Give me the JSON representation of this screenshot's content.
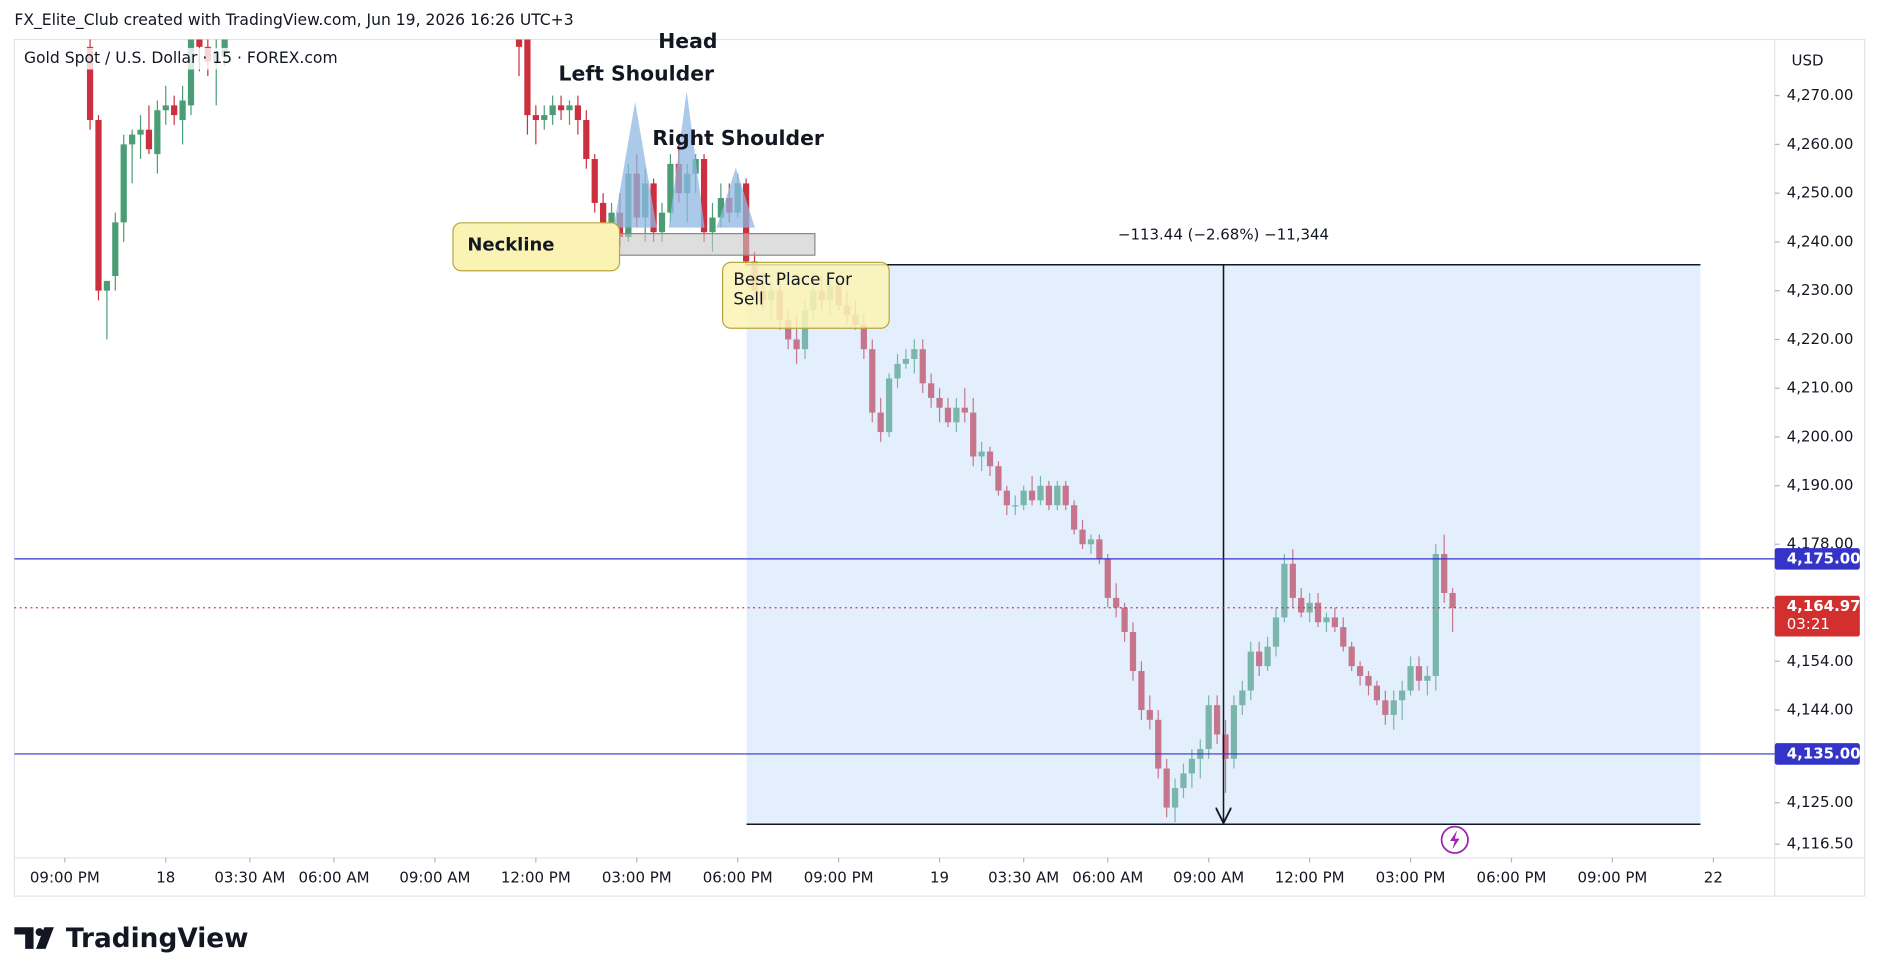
{
  "header": {
    "caption": "FX_Elite_Club created with TradingView.com, Jun 19, 2026 16:26 UTC+3",
    "symbol": "Gold Spot / U.S. Dollar · 15 · FOREX.com",
    "currency": "USD",
    "brand": "TradingView"
  },
  "chart_data": {
    "type": "candlestick",
    "up_color": "#4a9d74",
    "down_color": "#cc2f3d",
    "xlim": [
      -2,
      207.3
    ],
    "ylim": [
      4113.7,
      4281.5
    ],
    "xticks": [
      {
        "value": 4,
        "label": "09:00 PM"
      },
      {
        "value": 16,
        "label": "18"
      },
      {
        "value": 26,
        "label": "03:30 AM"
      },
      {
        "value": 36,
        "label": "06:00 AM"
      },
      {
        "value": 48,
        "label": "09:00 AM"
      },
      {
        "value": 60,
        "label": "12:00 PM"
      },
      {
        "value": 72,
        "label": "03:00 PM"
      },
      {
        "value": 84,
        "label": "06:00 PM"
      },
      {
        "value": 96,
        "label": "09:00 PM"
      },
      {
        "value": 108,
        "label": "19"
      },
      {
        "value": 118,
        "label": "03:30 AM"
      },
      {
        "value": 128,
        "label": "06:00 AM"
      },
      {
        "value": 140,
        "label": "09:00 AM"
      },
      {
        "value": 152,
        "label": "12:00 PM"
      },
      {
        "value": 164,
        "label": "03:00 PM"
      },
      {
        "value": 176,
        "label": "06:00 PM"
      },
      {
        "value": 188,
        "label": "09:00 PM"
      },
      {
        "value": 200,
        "label": "22"
      }
    ],
    "yticks": [
      {
        "value": 4116.5,
        "label": "4,116.50"
      },
      {
        "value": 4125,
        "label": "4,125.00"
      },
      {
        "value": 4144,
        "label": "4,144.00"
      },
      {
        "value": 4154,
        "label": "4,154.00"
      },
      {
        "value": 4178,
        "label": "4,178.00"
      },
      {
        "value": 4190,
        "label": "4,190.00"
      },
      {
        "value": 4200,
        "label": "4,200.00"
      },
      {
        "value": 4210,
        "label": "4,210.00"
      },
      {
        "value": 4220,
        "label": "4,220.00"
      },
      {
        "value": 4230,
        "label": "4,230.00"
      },
      {
        "value": 4240,
        "label": "4,240.00"
      },
      {
        "value": 4250,
        "label": "4,250.00"
      },
      {
        "value": 4260,
        "label": "4,260.00"
      },
      {
        "value": 4270,
        "label": "4,270.00"
      }
    ],
    "x": [
      7,
      8,
      9,
      10,
      11,
      12,
      13,
      14,
      15,
      16,
      17,
      18,
      19,
      20,
      21,
      22,
      23,
      58,
      59,
      60,
      61,
      62,
      63,
      64,
      65,
      66,
      67,
      68,
      69,
      70,
      71,
      72,
      73,
      74,
      75,
      76,
      77,
      78,
      79,
      80,
      81,
      82,
      83,
      84,
      85,
      86,
      87,
      88,
      89,
      90,
      91,
      92,
      93,
      94,
      95,
      96,
      97,
      98,
      99,
      100,
      101,
      102,
      103,
      104,
      105,
      106,
      107,
      108,
      109,
      110,
      111,
      112,
      113,
      114,
      115,
      116,
      117,
      118,
      119,
      120,
      121,
      122,
      123,
      124,
      125,
      126,
      127,
      128,
      129,
      130,
      131,
      132,
      133,
      134,
      135,
      136,
      137,
      138,
      139,
      140,
      141,
      142,
      143,
      144,
      145,
      146,
      147,
      148,
      149,
      150,
      151,
      152,
      153,
      154,
      155,
      156,
      157,
      158,
      159,
      160,
      161,
      162,
      163,
      164,
      165,
      166,
      167,
      168,
      169
    ],
    "open": [
      4280,
      4265,
      4230,
      4233,
      4244,
      4260,
      4262,
      4263,
      4258,
      4267,
      4268,
      4265,
      4268,
      4282,
      4280,
      4277,
      4278,
      4283,
      4282,
      4266,
      4265,
      4266,
      4268,
      4267,
      4268,
      4265,
      4257,
      4248,
      4244,
      4246,
      4241,
      4254,
      4245,
      4252,
      4242,
      4246,
      4256,
      4250,
      4254,
      4257,
      4242,
      4245,
      4249,
      4246,
      4252,
      4236,
      4230,
      4228,
      4230,
      4224,
      4220,
      4218,
      4226,
      4230,
      4228,
      4231,
      4227,
      4225,
      4223,
      4218,
      4205,
      4201,
      4212,
      4215,
      4216,
      4218,
      4211,
      4208,
      4206,
      4203,
      4206,
      4205,
      4196,
      4197,
      4194,
      4189,
      4186,
      4186,
      4189,
      4187,
      4190,
      4186,
      4190,
      4186,
      4181,
      4178,
      4179,
      4175,
      4167,
      4165,
      4160,
      4152,
      4144,
      4142,
      4132,
      4124,
      4128,
      4131,
      4134,
      4136,
      4145,
      4139,
      4134,
      4145,
      4148,
      4156,
      4153,
      4157,
      4163,
      4174,
      4167,
      4164,
      4166,
      4162,
      4163,
      4161,
      4157,
      4153,
      4151,
      4149,
      4146,
      4143,
      4146,
      4148,
      4153,
      4150,
      4151,
      4176,
      4168
    ],
    "high": [
      4285,
      4266,
      4232,
      4246,
      4262,
      4263,
      4266,
      4268,
      4269,
      4272,
      4270,
      4272,
      4285,
      4288,
      4285,
      4282,
      4290,
      4285,
      4283,
      4268,
      4268,
      4270,
      4270,
      4269,
      4270,
      4267,
      4258,
      4250,
      4248,
      4250,
      4256,
      4258,
      4255,
      4253,
      4248,
      4258,
      4262,
      4256,
      4258,
      4258,
      4248,
      4252,
      4252,
      4254,
      4253,
      4238,
      4234,
      4232,
      4231,
      4226,
      4225,
      4228,
      4232,
      4233,
      4232,
      4232,
      4230,
      4228,
      4225,
      4220,
      4208,
      4213,
      4217,
      4218,
      4220,
      4220,
      4213,
      4210,
      4208,
      4208,
      4210,
      4208,
      4199,
      4198,
      4195,
      4190,
      4188,
      4190,
      4192,
      4192,
      4191,
      4191,
      4191,
      4187,
      4183,
      4180,
      4180,
      4176,
      4170,
      4166,
      4162,
      4154,
      4147,
      4144,
      4134,
      4130,
      4133,
      4136,
      4138,
      4147,
      4147,
      4142,
      4147,
      4150,
      4158,
      4158,
      4159,
      4165,
      4176,
      4177,
      4169,
      4168,
      4168,
      4164,
      4165,
      4163,
      4158,
      4154,
      4152,
      4150,
      4148,
      4148,
      4150,
      4155,
      4155,
      4153,
      4178,
      4180,
      4169
    ],
    "low": [
      4263,
      4228,
      4220,
      4230,
      4240,
      4252,
      4257,
      4258,
      4254,
      4264,
      4264,
      4260,
      4266,
      4275,
      4274,
      4268,
      4276,
      4274,
      4262,
      4260,
      4263,
      4264,
      4265,
      4264,
      4262,
      4255,
      4246,
      4238,
      4240,
      4239,
      4240,
      4243,
      4240,
      4240,
      4240,
      4244,
      4248,
      4244,
      4250,
      4240,
      4238,
      4243,
      4244,
      4245,
      4235,
      4228,
      4226,
      4224,
      4222,
      4218,
      4215,
      4216,
      4224,
      4226,
      4225,
      4226,
      4223,
      4222,
      4216,
      4203,
      4199,
      4200,
      4210,
      4214,
      4213,
      4209,
      4206,
      4203,
      4202,
      4201,
      4203,
      4194,
      4193,
      4192,
      4188,
      4184,
      4184,
      4185,
      4186,
      4186,
      4185,
      4185,
      4185,
      4180,
      4177,
      4176,
      4174,
      4165,
      4163,
      4158,
      4150,
      4142,
      4140,
      4130,
      4122,
      4121,
      4126,
      4128,
      4130,
      4134,
      4137,
      4127,
      4132,
      4143,
      4146,
      4151,
      4152,
      4155,
      4162,
      4165,
      4163,
      4162,
      4161,
      4160,
      4160,
      4156,
      4152,
      4149,
      4147,
      4145,
      4141,
      4140,
      4142,
      4147,
      4148,
      4147,
      4148,
      4166,
      4160
    ],
    "close": [
      4265,
      4230,
      4232,
      4244,
      4260,
      4262,
      4263,
      4259,
      4267,
      4268,
      4266,
      4269,
      4282,
      4280,
      4277,
      4279,
      4288,
      4280,
      4266,
      4265,
      4266,
      4268,
      4267,
      4268,
      4265,
      4257,
      4248,
      4244,
      4246,
      4241,
      4254,
      4245,
      4252,
      4242,
      4246,
      4256,
      4250,
      4254,
      4257,
      4242,
      4245,
      4249,
      4246,
      4252,
      4236,
      4230,
      4228,
      4230,
      4224,
      4220,
      4218,
      4226,
      4230,
      4228,
      4231,
      4227,
      4225,
      4223,
      4218,
      4205,
      4201,
      4212,
      4215,
      4216,
      4218,
      4211,
      4208,
      4206,
      4203,
      4206,
      4205,
      4196,
      4197,
      4194,
      4189,
      4186,
      4186,
      4189,
      4187,
      4190,
      4186,
      4190,
      4186,
      4181,
      4178,
      4179,
      4175,
      4167,
      4165,
      4160,
      4152,
      4144,
      4142,
      4132,
      4124,
      4128,
      4131,
      4134,
      4136,
      4145,
      4139,
      4134,
      4145,
      4148,
      4156,
      4153,
      4157,
      4163,
      4174,
      4167,
      4164,
      4166,
      4162,
      4163,
      4161,
      4157,
      4153,
      4151,
      4149,
      4146,
      4143,
      4146,
      4148,
      4153,
      4150,
      4151,
      4176,
      4168,
      4164.97
    ],
    "hlines": [
      {
        "value": 4175,
        "label": "4,175.00",
        "color": "#3434c8"
      },
      {
        "value": 4135,
        "label": "4,135.00",
        "color": "#3434c8"
      }
    ],
    "last_price": {
      "value": 4164.97,
      "label": "4,164.97",
      "countdown": "03:21",
      "color": "#d32f2f"
    },
    "annotations": {
      "head": "Head",
      "left_shoulder": "Left Shoulder",
      "right_shoulder": "Right Shoulder",
      "neckline": "Neckline",
      "sell": "Best Place For Sell",
      "measure": "−113.44 (−2.68%) −11,344"
    }
  }
}
